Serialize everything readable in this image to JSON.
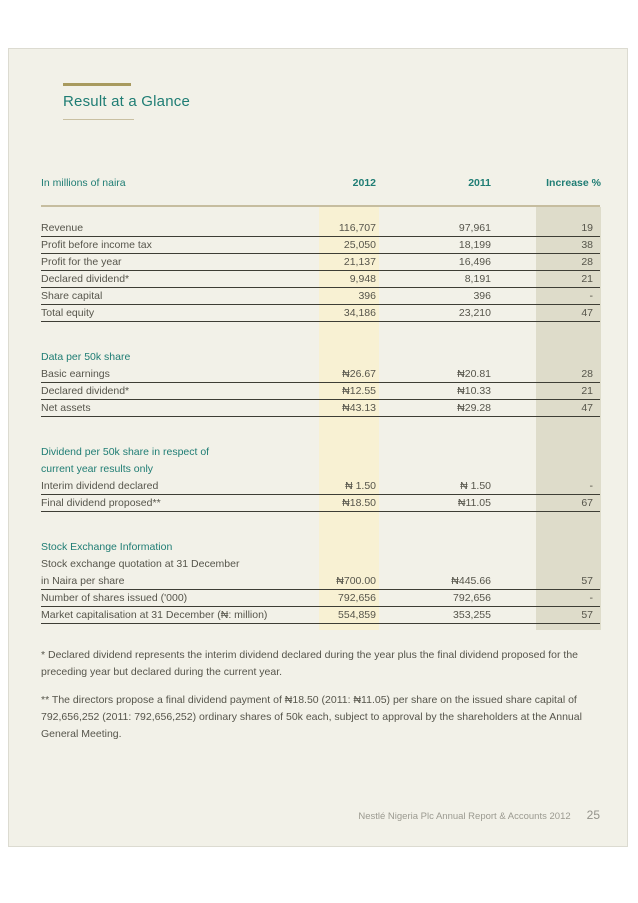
{
  "page": {
    "title": "Result at a Glance",
    "footer_text": "Nestlé Nigeria Plc Annual Report & Accounts 2012",
    "page_number": "25"
  },
  "colors": {
    "teal": "#1f7d74",
    "accent_bar": "#a89a5e",
    "band_2012": "#f8f1d3",
    "band_increase": "#dedcca",
    "page_background": "#f2f1e8"
  },
  "table": {
    "unit_label": "In millions of naira",
    "col_2012": "2012",
    "col_2011": "2011",
    "col_increase": "Increase %",
    "sections": [
      {
        "heading_lines": [],
        "pre_rows": [],
        "rows": [
          {
            "label": "Revenue",
            "v2012": "116,707",
            "v2011": "97,961",
            "increase": "19"
          },
          {
            "label": "Profit before income tax",
            "v2012": "25,050",
            "v2011": "18,199",
            "increase": "38"
          },
          {
            "label": "Profit for the year",
            "v2012": "21,137",
            "v2011": "16,496",
            "increase": "28"
          },
          {
            "label": "Declared dividend*",
            "v2012": "9,948",
            "v2011": "8,191",
            "increase": "21"
          },
          {
            "label": "Share capital",
            "v2012": "396",
            "v2011": "396",
            "increase": "-"
          },
          {
            "label": "Total equity",
            "v2012": "34,186",
            "v2011": "23,210",
            "increase": "47"
          }
        ]
      },
      {
        "heading_lines": [
          "Data per 50k share"
        ],
        "pre_rows": [],
        "rows": [
          {
            "label": "Basic earnings",
            "v2012": "₦26.67",
            "v2011": "₦20.81",
            "increase": "28"
          },
          {
            "label": "Declared dividend*",
            "v2012": "₦12.55",
            "v2011": "₦10.33",
            "increase": "21"
          },
          {
            "label": "Net assets",
            "v2012": "₦43.13",
            "v2011": "₦29.28",
            "increase": "47"
          }
        ]
      },
      {
        "heading_lines": [
          "Dividend per 50k share in respect of",
          "current year results only"
        ],
        "pre_rows": [],
        "rows": [
          {
            "label": "Interim dividend declared",
            "v2012": "₦ 1.50",
            "v2011": "₦ 1.50",
            "increase": "-"
          },
          {
            "label": "Final dividend proposed**",
            "v2012": "₦18.50",
            "v2011": "₦11.05",
            "increase": "67"
          }
        ]
      },
      {
        "heading_lines": [
          "Stock Exchange Information"
        ],
        "pre_rows": [
          "Stock exchange quotation at 31 December"
        ],
        "rows": [
          {
            "label": "in Naira per share",
            "v2012": "₦700.00",
            "v2011": "₦445.66",
            "increase": "57"
          },
          {
            "label": "Number of shares issued ('000)",
            "v2012": "792,656",
            "v2011": "792,656",
            "increase": "-"
          },
          {
            "label": "Market capitalisation at 31 December (₦: million)",
            "v2012": "554,859",
            "v2011": "353,255",
            "increase": "57"
          }
        ]
      }
    ]
  },
  "footnotes": [
    "* Declared dividend represents the interim dividend declared during the year plus the final dividend proposed for the preceding year but declared during the current year.",
    "** The directors propose a final dividend payment of ₦18.50 (2011: ₦11.05) per share on the issued share capital of 792,656,252 (2011: 792,656,252) ordinary shares of 50k each, subject to approval by the shareholders at the Annual General Meeting."
  ]
}
